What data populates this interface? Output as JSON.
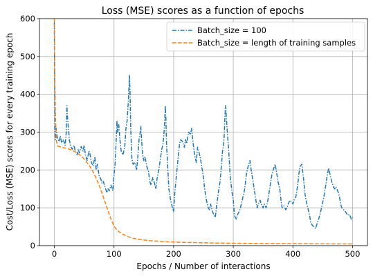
{
  "chart_data": {
    "type": "line",
    "title": "Loss (MSE) scores as a function of epochs",
    "xlabel": "Epochs / Number of interactions",
    "ylabel": "Cost/Loss (MSE) scores for every training epoch",
    "xlim": [
      -25,
      525
    ],
    "ylim": [
      0,
      600
    ],
    "xticks": [
      0,
      100,
      200,
      300,
      400,
      500
    ],
    "yticks": [
      0,
      100,
      200,
      300,
      400,
      500,
      600
    ],
    "grid": true,
    "legend_position": "upper right",
    "series": [
      {
        "name": "Batch_size = 100",
        "color": "#1f77b4",
        "style": "dashdot",
        "x": [
          0,
          1,
          2,
          3,
          5,
          8,
          10,
          12,
          15,
          18,
          20,
          21,
          22,
          23,
          24,
          25,
          28,
          30,
          33,
          35,
          38,
          40,
          42,
          45,
          48,
          50,
          52,
          55,
          58,
          60,
          62,
          65,
          68,
          70,
          72,
          75,
          78,
          80,
          82,
          85,
          88,
          90,
          92,
          95,
          98,
          100,
          102,
          104,
          105,
          106,
          108,
          110,
          112,
          115,
          118,
          120,
          122,
          124,
          125,
          126,
          127,
          128,
          130,
          132,
          135,
          138,
          140,
          142,
          144,
          145,
          146,
          148,
          150,
          152,
          155,
          158,
          160,
          162,
          165,
          168,
          170,
          172,
          175,
          178,
          180,
          182,
          184,
          185,
          186,
          187,
          188,
          190,
          192,
          195,
          198,
          200,
          202,
          205,
          208,
          210,
          212,
          215,
          218,
          220,
          222,
          225,
          228,
          230,
          232,
          235,
          238,
          240,
          242,
          245,
          248,
          250,
          252,
          255,
          258,
          260,
          262,
          265,
          268,
          270,
          272,
          275,
          278,
          280,
          282,
          284,
          285,
          286,
          287,
          288,
          290,
          292,
          295,
          298,
          300,
          302,
          305,
          308,
          310,
          312,
          315,
          318,
          320,
          322,
          325,
          328,
          330,
          332,
          335,
          338,
          340,
          342,
          345,
          348,
          350,
          352,
          355,
          358,
          360,
          362,
          365,
          368,
          370,
          372,
          375,
          378,
          380,
          382,
          385,
          388,
          390,
          392,
          395,
          398,
          400,
          402,
          405,
          408,
          410,
          412,
          415,
          418,
          420,
          422,
          425,
          428,
          430,
          432,
          435,
          438,
          440,
          442,
          445,
          448,
          450,
          452,
          455,
          458,
          460,
          462,
          465,
          468,
          470,
          472,
          475,
          478,
          480,
          482,
          485,
          488,
          490,
          492,
          495,
          498,
          500
        ],
        "values": [
          590,
          300,
          280,
          310,
          285,
          275,
          290,
          272,
          280,
          265,
          300,
          370,
          340,
          320,
          305,
          280,
          260,
          255,
          265,
          250,
          240,
          255,
          245,
          262,
          250,
          265,
          240,
          225,
          250,
          240,
          220,
          210,
          235,
          200,
          215,
          185,
          175,
          165,
          170,
          155,
          140,
          150,
          145,
          160,
          145,
          185,
          220,
          290,
          330,
          300,
          320,
          280,
          250,
          240,
          260,
          310,
          330,
          380,
          420,
          450,
          400,
          310,
          230,
          215,
          220,
          200,
          235,
          280,
          300,
          315,
          285,
          240,
          225,
          235,
          210,
          195,
          170,
          160,
          180,
          165,
          150,
          175,
          200,
          230,
          255,
          265,
          300,
          330,
          370,
          340,
          270,
          210,
          150,
          120,
          100,
          90,
          140,
          190,
          240,
          270,
          280,
          275,
          260,
          280,
          270,
          300,
          295,
          310,
          280,
          240,
          220,
          260,
          250,
          230,
          200,
          180,
          150,
          120,
          100,
          95,
          110,
          90,
          80,
          75,
          105,
          140,
          170,
          210,
          250,
          270,
          300,
          340,
          370,
          350,
          300,
          260,
          180,
          140,
          120,
          80,
          70,
          85,
          90,
          100,
          120,
          140,
          160,
          190,
          210,
          225,
          200,
          180,
          150,
          120,
          100,
          110,
          120,
          105,
          100,
          110,
          100,
          120,
          140,
          160,
          190,
          205,
          215,
          200,
          170,
          150,
          120,
          100,
          105,
          95,
          100,
          110,
          120,
          115,
          110,
          120,
          130,
          160,
          190,
          210,
          215,
          175,
          140,
          120,
          100,
          80,
          60,
          55,
          50,
          45,
          55,
          65,
          80,
          100,
          115,
          130,
          160,
          190,
          205,
          190,
          170,
          155,
          150,
          155,
          145,
          130,
          110,
          100,
          95,
          90,
          85,
          80,
          82,
          70,
          75
        ]
      },
      {
        "name": "Batch_size = length of training samples",
        "color": "#ff7f0e",
        "style": "dashed",
        "x": [
          0,
          1,
          2,
          3,
          4,
          5,
          6,
          8,
          10,
          15,
          20,
          25,
          30,
          35,
          40,
          45,
          50,
          55,
          60,
          65,
          70,
          75,
          80,
          85,
          90,
          95,
          100,
          102,
          105,
          110,
          115,
          120,
          125,
          130,
          140,
          150,
          160,
          170,
          180,
          190,
          200,
          220,
          240,
          260,
          280,
          300,
          325,
          350,
          375,
          400,
          425,
          450,
          475,
          500
        ],
        "values": [
          600,
          420,
          330,
          290,
          272,
          266,
          263,
          262,
          261,
          259,
          257,
          255,
          252,
          248,
          243,
          237,
          229,
          219,
          208,
          195,
          178,
          160,
          138,
          115,
          92,
          70,
          52,
          47,
          41,
          35,
          30,
          26,
          23,
          20,
          17,
          15,
          13,
          12,
          11,
          10,
          9.5,
          8.5,
          7.8,
          7.2,
          6.8,
          6.4,
          6.0,
          5.7,
          5.4,
          5.2,
          5.0,
          4.8,
          4.6,
          4.5
        ]
      }
    ]
  }
}
